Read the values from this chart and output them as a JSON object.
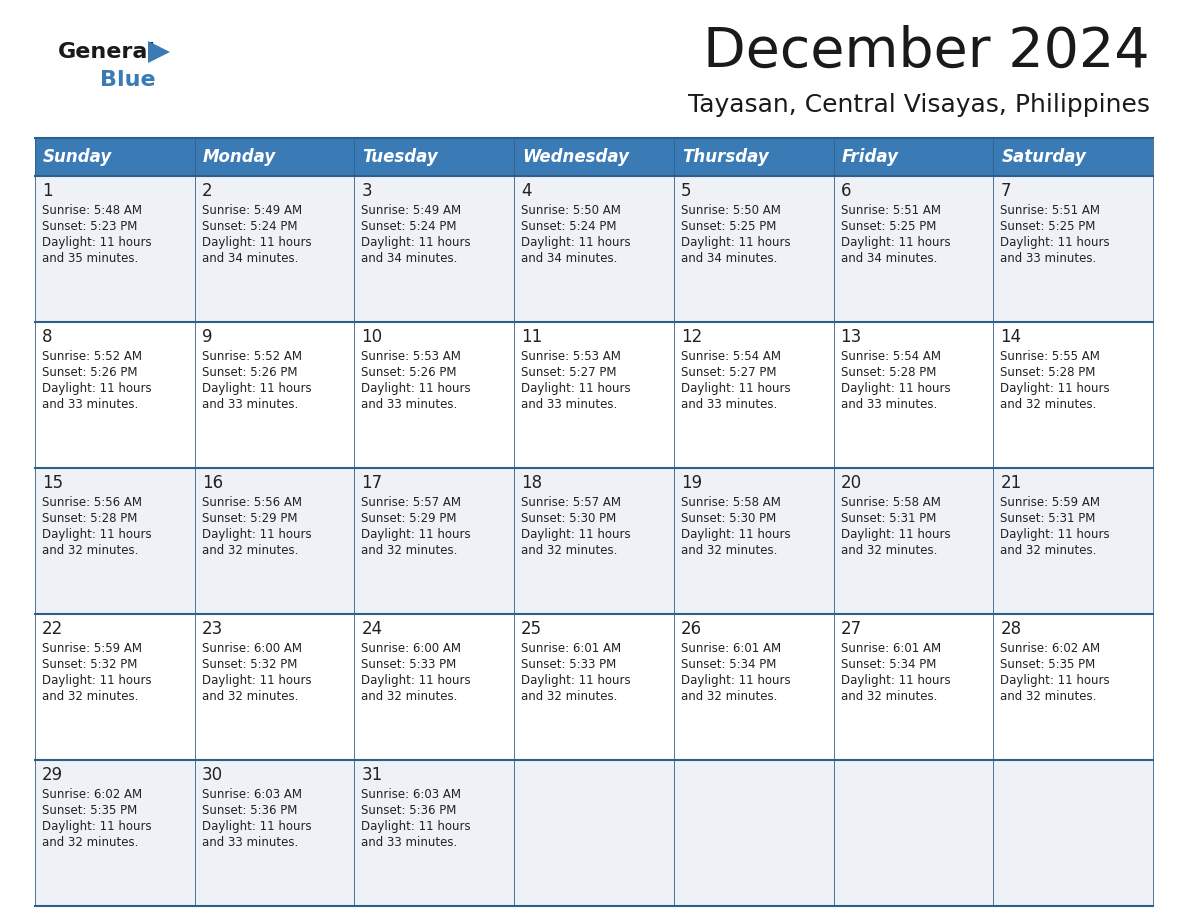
{
  "title": "December 2024",
  "subtitle": "Tayasan, Central Visayas, Philippines",
  "header_bg": "#3a7ab5",
  "header_text": "#ffffff",
  "row_bg_light": "#eef2f7",
  "row_bg_white": "#ffffff",
  "border_color": "#2e5f8a",
  "text_color": "#222222",
  "day_headers": [
    "Sunday",
    "Monday",
    "Tuesday",
    "Wednesday",
    "Thursday",
    "Friday",
    "Saturday"
  ],
  "days": [
    {
      "day": 1,
      "col": 0,
      "row": 0,
      "sunrise": "5:48 AM",
      "sunset": "5:23 PM",
      "minutes": "35"
    },
    {
      "day": 2,
      "col": 1,
      "row": 0,
      "sunrise": "5:49 AM",
      "sunset": "5:24 PM",
      "minutes": "34"
    },
    {
      "day": 3,
      "col": 2,
      "row": 0,
      "sunrise": "5:49 AM",
      "sunset": "5:24 PM",
      "minutes": "34"
    },
    {
      "day": 4,
      "col": 3,
      "row": 0,
      "sunrise": "5:50 AM",
      "sunset": "5:24 PM",
      "minutes": "34"
    },
    {
      "day": 5,
      "col": 4,
      "row": 0,
      "sunrise": "5:50 AM",
      "sunset": "5:25 PM",
      "minutes": "34"
    },
    {
      "day": 6,
      "col": 5,
      "row": 0,
      "sunrise": "5:51 AM",
      "sunset": "5:25 PM",
      "minutes": "34"
    },
    {
      "day": 7,
      "col": 6,
      "row": 0,
      "sunrise": "5:51 AM",
      "sunset": "5:25 PM",
      "minutes": "33"
    },
    {
      "day": 8,
      "col": 0,
      "row": 1,
      "sunrise": "5:52 AM",
      "sunset": "5:26 PM",
      "minutes": "33"
    },
    {
      "day": 9,
      "col": 1,
      "row": 1,
      "sunrise": "5:52 AM",
      "sunset": "5:26 PM",
      "minutes": "33"
    },
    {
      "day": 10,
      "col": 2,
      "row": 1,
      "sunrise": "5:53 AM",
      "sunset": "5:26 PM",
      "minutes": "33"
    },
    {
      "day": 11,
      "col": 3,
      "row": 1,
      "sunrise": "5:53 AM",
      "sunset": "5:27 PM",
      "minutes": "33"
    },
    {
      "day": 12,
      "col": 4,
      "row": 1,
      "sunrise": "5:54 AM",
      "sunset": "5:27 PM",
      "minutes": "33"
    },
    {
      "day": 13,
      "col": 5,
      "row": 1,
      "sunrise": "5:54 AM",
      "sunset": "5:28 PM",
      "minutes": "33"
    },
    {
      "day": 14,
      "col": 6,
      "row": 1,
      "sunrise": "5:55 AM",
      "sunset": "5:28 PM",
      "minutes": "32"
    },
    {
      "day": 15,
      "col": 0,
      "row": 2,
      "sunrise": "5:56 AM",
      "sunset": "5:28 PM",
      "minutes": "32"
    },
    {
      "day": 16,
      "col": 1,
      "row": 2,
      "sunrise": "5:56 AM",
      "sunset": "5:29 PM",
      "minutes": "32"
    },
    {
      "day": 17,
      "col": 2,
      "row": 2,
      "sunrise": "5:57 AM",
      "sunset": "5:29 PM",
      "minutes": "32"
    },
    {
      "day": 18,
      "col": 3,
      "row": 2,
      "sunrise": "5:57 AM",
      "sunset": "5:30 PM",
      "minutes": "32"
    },
    {
      "day": 19,
      "col": 4,
      "row": 2,
      "sunrise": "5:58 AM",
      "sunset": "5:30 PM",
      "minutes": "32"
    },
    {
      "day": 20,
      "col": 5,
      "row": 2,
      "sunrise": "5:58 AM",
      "sunset": "5:31 PM",
      "minutes": "32"
    },
    {
      "day": 21,
      "col": 6,
      "row": 2,
      "sunrise": "5:59 AM",
      "sunset": "5:31 PM",
      "minutes": "32"
    },
    {
      "day": 22,
      "col": 0,
      "row": 3,
      "sunrise": "5:59 AM",
      "sunset": "5:32 PM",
      "minutes": "32"
    },
    {
      "day": 23,
      "col": 1,
      "row": 3,
      "sunrise": "6:00 AM",
      "sunset": "5:32 PM",
      "minutes": "32"
    },
    {
      "day": 24,
      "col": 2,
      "row": 3,
      "sunrise": "6:00 AM",
      "sunset": "5:33 PM",
      "minutes": "32"
    },
    {
      "day": 25,
      "col": 3,
      "row": 3,
      "sunrise": "6:01 AM",
      "sunset": "5:33 PM",
      "minutes": "32"
    },
    {
      "day": 26,
      "col": 4,
      "row": 3,
      "sunrise": "6:01 AM",
      "sunset": "5:34 PM",
      "minutes": "32"
    },
    {
      "day": 27,
      "col": 5,
      "row": 3,
      "sunrise": "6:01 AM",
      "sunset": "5:34 PM",
      "minutes": "32"
    },
    {
      "day": 28,
      "col": 6,
      "row": 3,
      "sunrise": "6:02 AM",
      "sunset": "5:35 PM",
      "minutes": "32"
    },
    {
      "day": 29,
      "col": 0,
      "row": 4,
      "sunrise": "6:02 AM",
      "sunset": "5:35 PM",
      "minutes": "32"
    },
    {
      "day": 30,
      "col": 1,
      "row": 4,
      "sunrise": "6:03 AM",
      "sunset": "5:36 PM",
      "minutes": "33"
    },
    {
      "day": 31,
      "col": 2,
      "row": 4,
      "sunrise": "6:03 AM",
      "sunset": "5:36 PM",
      "minutes": "33"
    }
  ]
}
